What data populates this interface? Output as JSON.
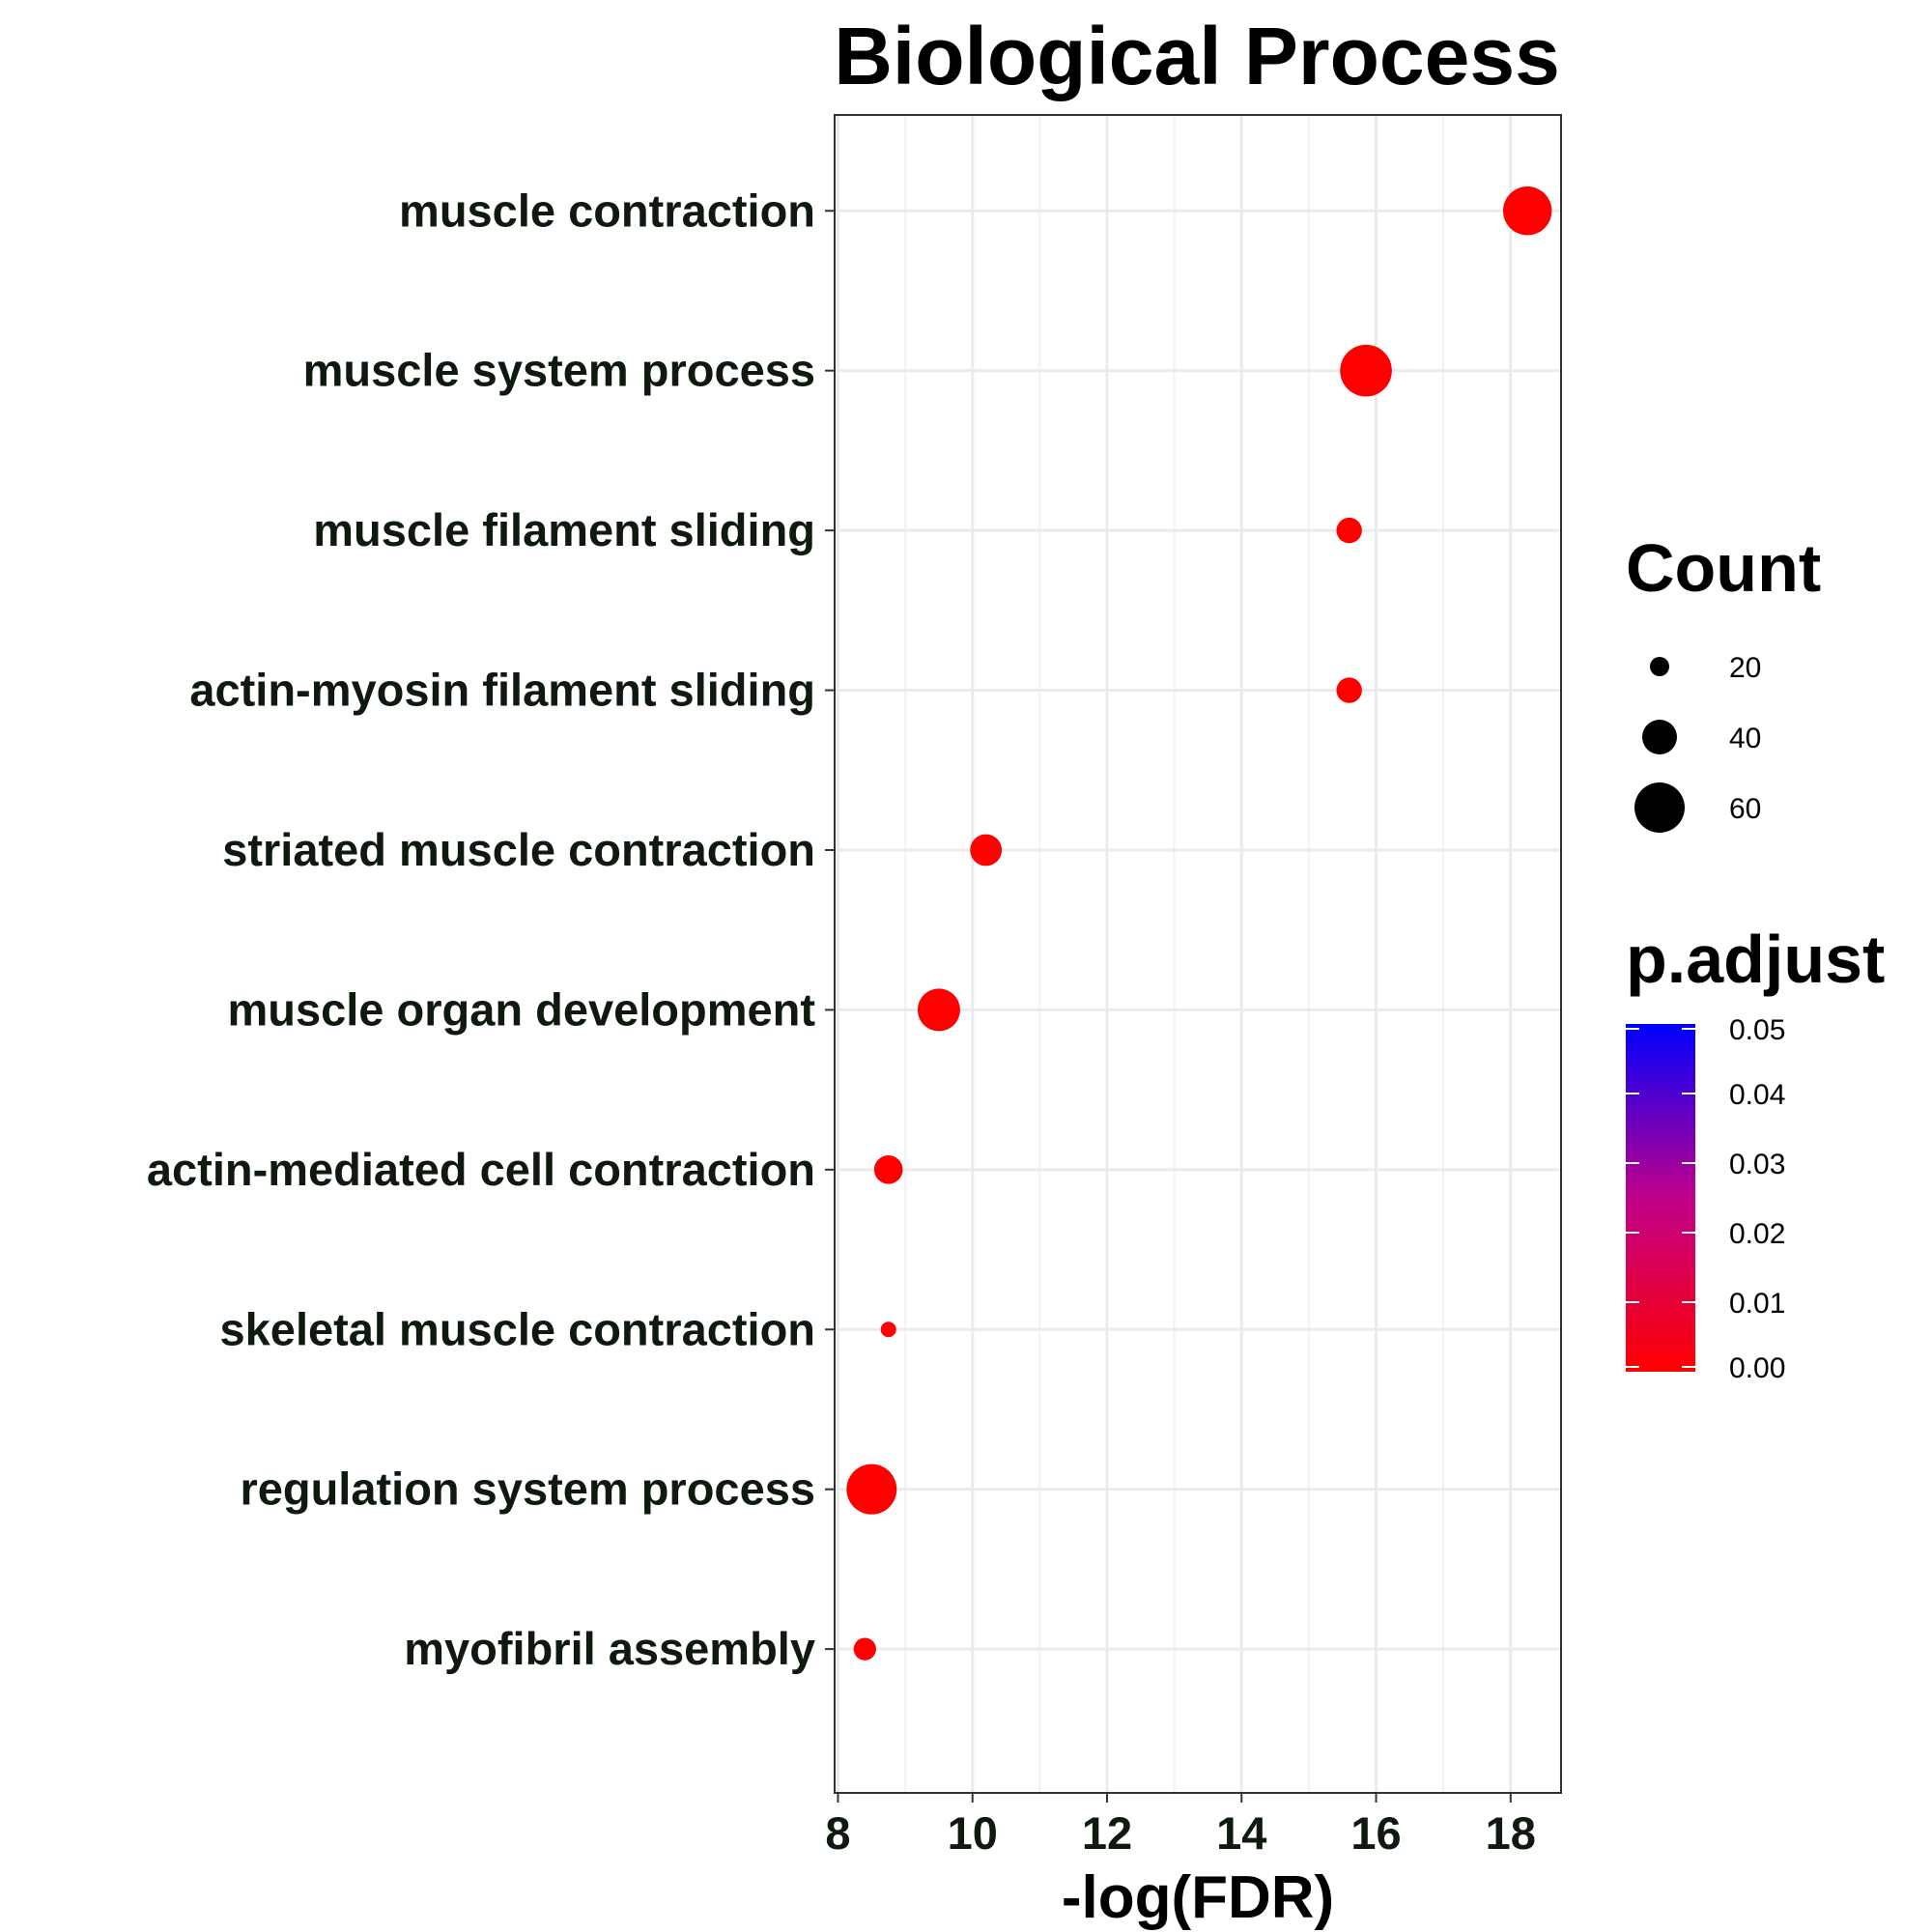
{
  "chart_data": {
    "type": "scatter",
    "title": "Biological Process",
    "xlabel": "-log(FDR)",
    "ylabel": "",
    "xlim": [
      7.95,
      18.75
    ],
    "xticks": [
      8,
      10,
      12,
      14,
      16,
      18
    ],
    "xtick_labels": [
      "8",
      "10",
      "12",
      "14",
      "16",
      "18"
    ],
    "grid": true,
    "categories": [
      "muscle contraction",
      "muscle system process",
      "muscle filament sliding",
      "actin-myosin filament sliding",
      "striated muscle contraction",
      "muscle organ development",
      "actin-mediated cell contraction",
      "skeletal muscle contraction",
      "regulation system process",
      "myofibril assembly"
    ],
    "x": [
      18.25,
      15.85,
      15.6,
      15.6,
      10.2,
      9.5,
      8.75,
      8.75,
      8.5,
      8.4
    ],
    "count": [
      58,
      62,
      28,
      28,
      36,
      50,
      32,
      15,
      60,
      24
    ],
    "p_adjust": [
      0.0,
      0.0,
      0.0,
      0.0,
      0.0,
      0.0,
      0.0,
      0.0,
      0.0,
      0.0
    ],
    "point_color": "#ff0000",
    "size_legend": {
      "title": "Count",
      "values": [
        20,
        40,
        60
      ],
      "labels": [
        "20",
        "40",
        "60"
      ]
    },
    "color_legend": {
      "title": "p.adjust",
      "range": [
        0.0,
        0.05
      ],
      "low_color": "#ff0000",
      "high_color": "#0000ff",
      "ticks": [
        0.05,
        0.04,
        0.03,
        0.02,
        0.01,
        0.0
      ],
      "labels": [
        "0.05",
        "0.04",
        "0.03",
        "0.02",
        "0.01",
        "0.00"
      ]
    },
    "legend_position": "right"
  }
}
